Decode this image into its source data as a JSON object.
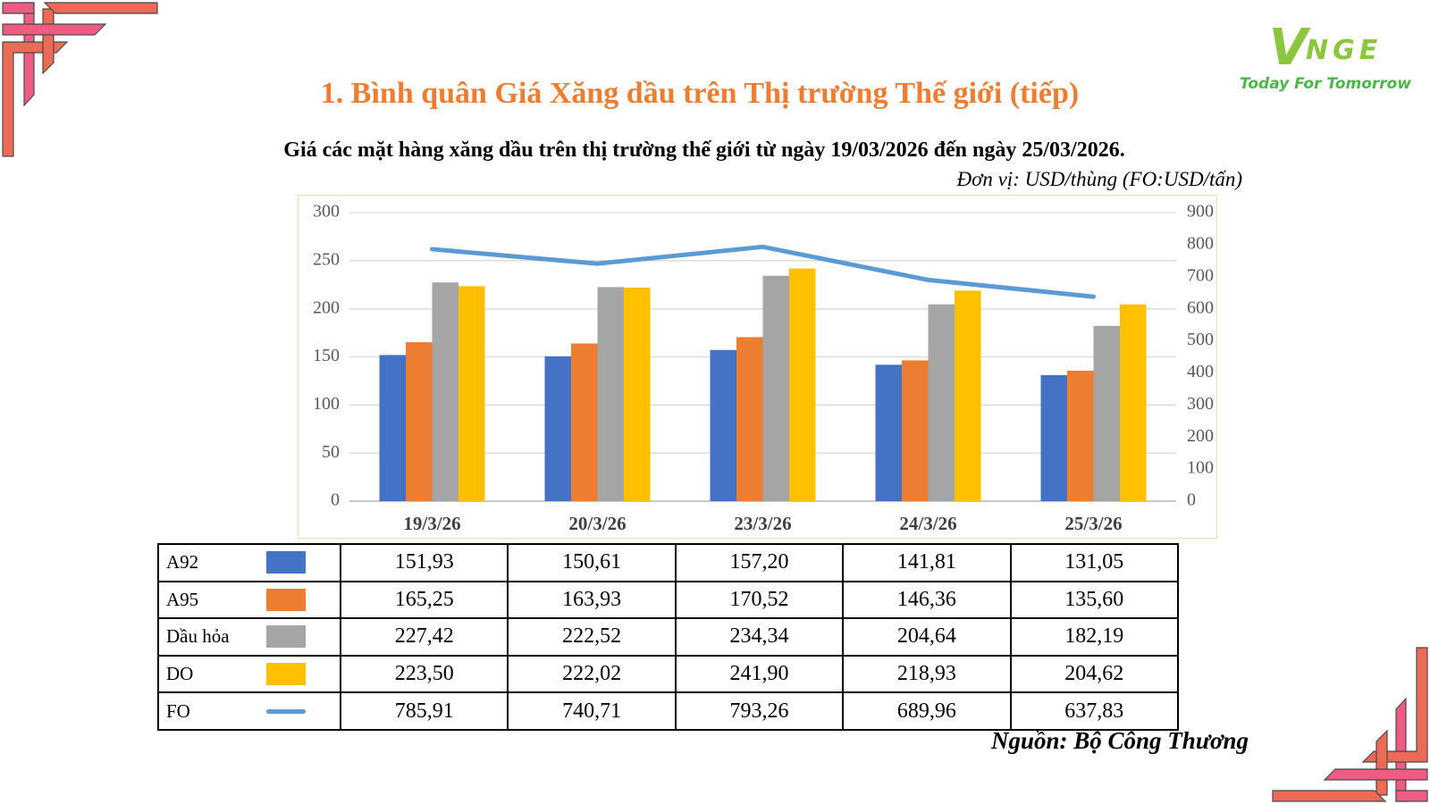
{
  "slide": {
    "title": "1. Bình quân Giá Xăng dầu trên Thị trường Thế giới (tiếp)",
    "subtitle": "Giá các mặt hàng xăng dầu trên thị trường thế giới từ ngày 19/03/2026 đến ngày 25/03/2026.",
    "unit_note": "Đơn vị: USD/thùng (FO:USD/tấn)",
    "source": "Nguồn: Bộ Công Thương"
  },
  "logo": {
    "mark": "V",
    "name": "NGE",
    "tagline": "Today For Tomorrow"
  },
  "decor": {
    "title_orange": "#ED7D31",
    "chart_border": "#F0DBB0",
    "logo_green": "#8CC63F",
    "tagline_green": "#4CB648",
    "pink": "#EE5C83",
    "salmon": "#ED6A56",
    "outline": "#4A4A4A"
  },
  "chart_data": {
    "type": "bar",
    "subtype": "grouped bars with secondary-axis line",
    "categories": [
      "19/3/26",
      "20/3/26",
      "23/3/26",
      "24/3/26",
      "25/3/26"
    ],
    "series": [
      {
        "name": "A92",
        "type": "bar",
        "axis": "left",
        "color": "#4472C4",
        "values": [
          151.93,
          150.61,
          157.2,
          141.81,
          131.05
        ]
      },
      {
        "name": "A95",
        "type": "bar",
        "axis": "left",
        "color": "#ED7D31",
        "values": [
          165.25,
          163.93,
          170.52,
          146.36,
          135.6
        ]
      },
      {
        "name": "Dầu hỏa",
        "type": "bar",
        "axis": "left",
        "color": "#A5A5A5",
        "values": [
          227.42,
          222.52,
          234.34,
          204.64,
          182.19
        ]
      },
      {
        "name": "DO",
        "type": "bar",
        "axis": "left",
        "color": "#FFC000",
        "values": [
          223.5,
          222.02,
          241.9,
          218.93,
          204.62
        ]
      },
      {
        "name": "FO",
        "type": "line",
        "axis": "right",
        "color": "#5B9BD5",
        "values": [
          785.91,
          740.71,
          793.26,
          689.96,
          637.83
        ]
      }
    ],
    "left_axis": {
      "min": 0,
      "max": 300,
      "ticks": [
        0,
        50,
        100,
        150,
        200,
        250,
        300
      ]
    },
    "right_axis": {
      "min": 0,
      "max": 900,
      "ticks": [
        0,
        100,
        200,
        300,
        400,
        500,
        600,
        700,
        800,
        900
      ]
    },
    "grid": true,
    "legend_position": "table-below"
  },
  "table": {
    "rows": [
      {
        "label": "A92",
        "swatch": "bar",
        "color": "#4472C4",
        "values": [
          "151,93",
          "150,61",
          "157,20",
          "141,81",
          "131,05"
        ]
      },
      {
        "label": "A95",
        "swatch": "bar",
        "color": "#ED7D31",
        "values": [
          "165,25",
          "163,93",
          "170,52",
          "146,36",
          "135,60"
        ]
      },
      {
        "label": "Dầu hỏa",
        "swatch": "bar",
        "color": "#A5A5A5",
        "values": [
          "227,42",
          "222,52",
          "234,34",
          "204,64",
          "182,19"
        ]
      },
      {
        "label": "DO",
        "swatch": "bar",
        "color": "#FFC000",
        "values": [
          "223,50",
          "222,02",
          "241,90",
          "218,93",
          "204,62"
        ]
      },
      {
        "label": "FO",
        "swatch": "line",
        "color": "#5B9BD5",
        "values": [
          "785,91",
          "740,71",
          "793,26",
          "689,96",
          "637,83"
        ]
      }
    ]
  }
}
